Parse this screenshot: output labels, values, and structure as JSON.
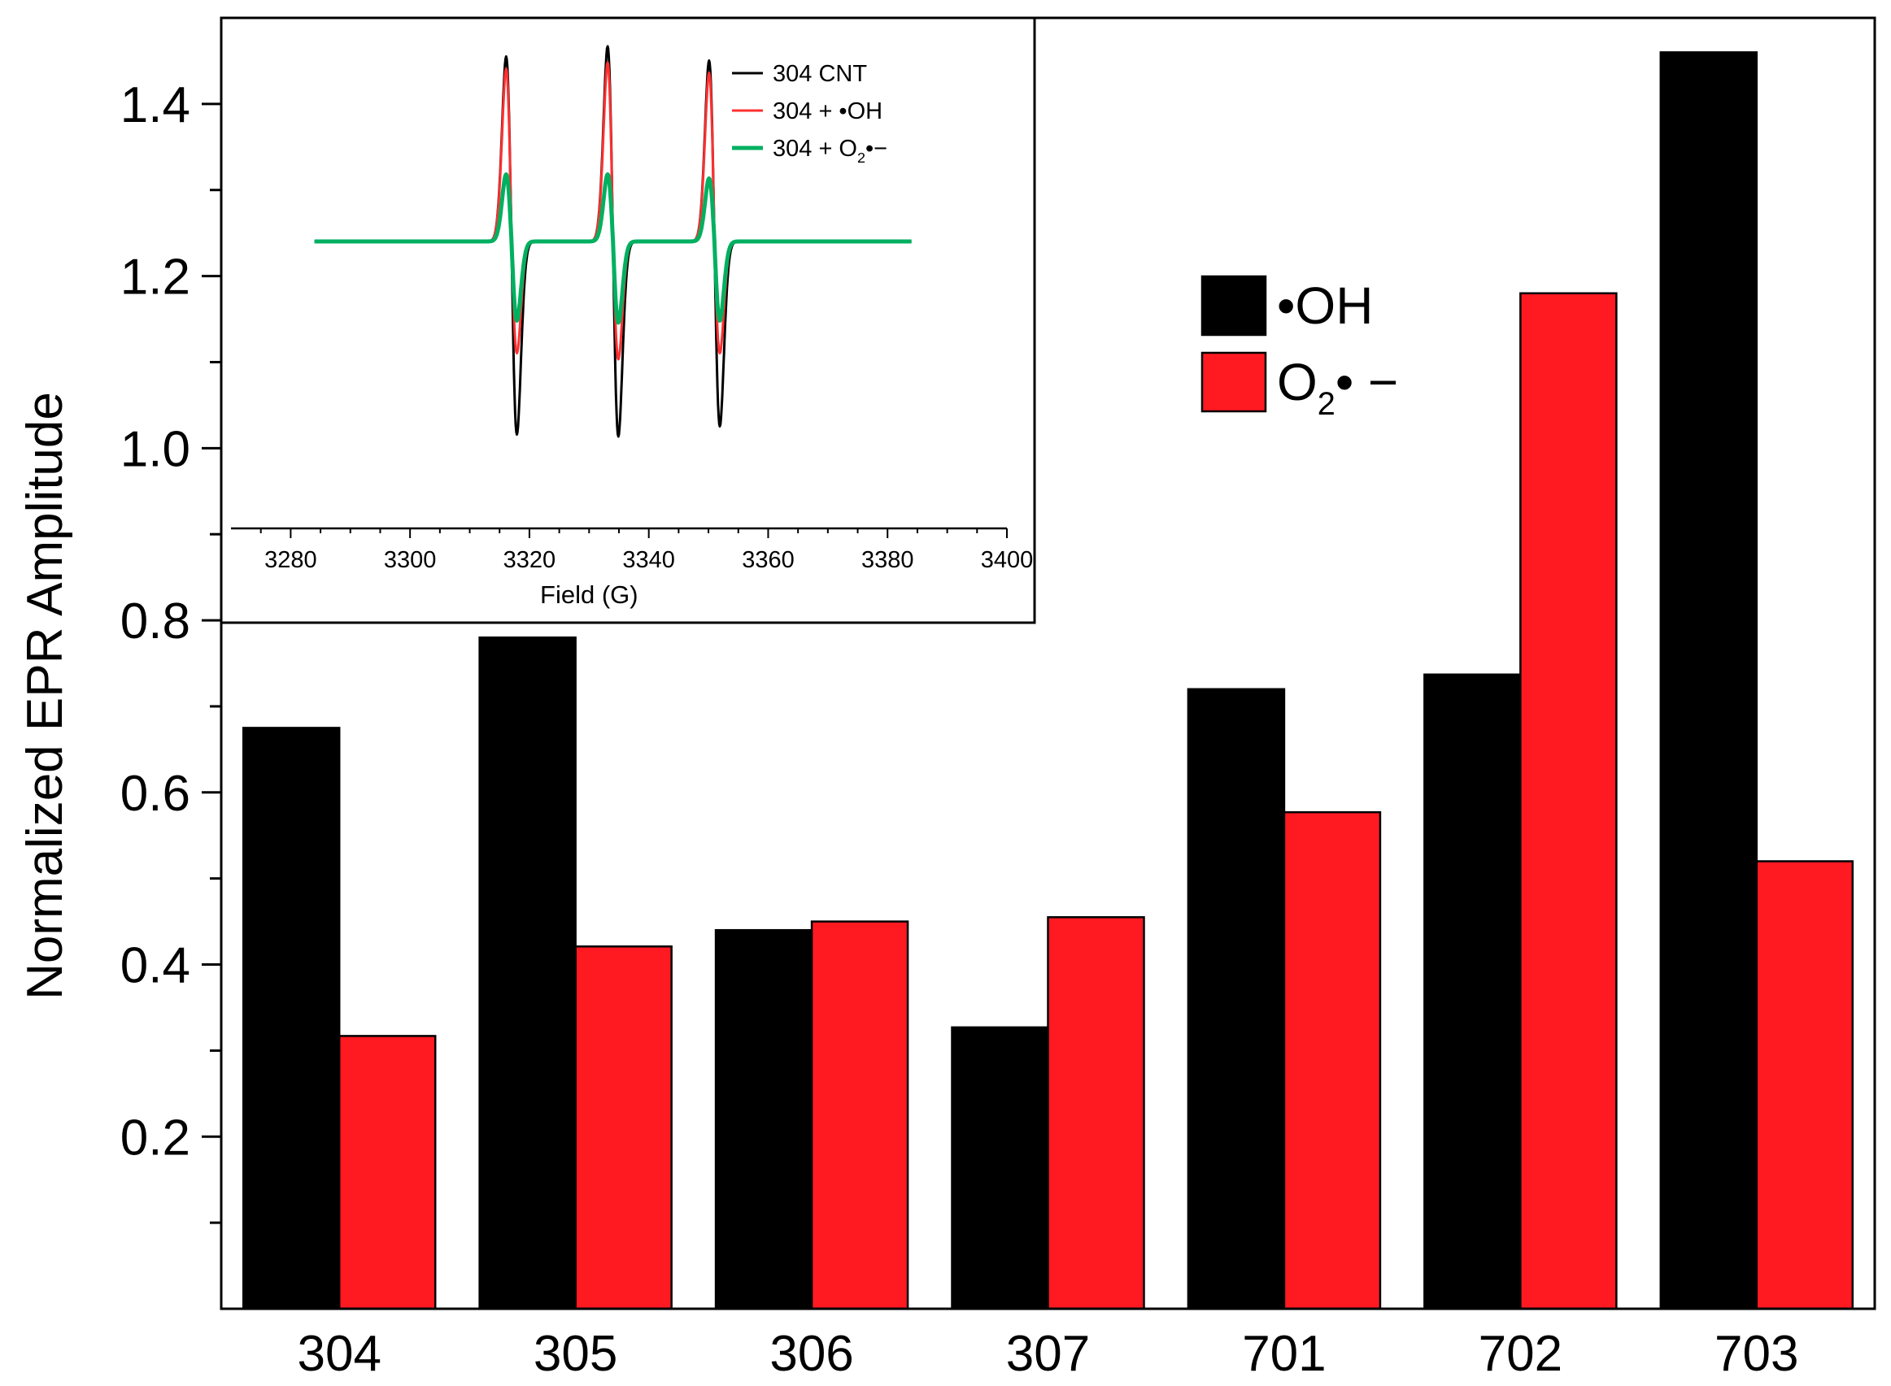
{
  "chart_data": [
    {
      "type": "bar",
      "title": "",
      "xlabel": "",
      "ylabel": "Normalized EPR Amplitude",
      "categories": [
        "304",
        "305",
        "306",
        "307",
        "701",
        "702",
        "703"
      ],
      "series": [
        {
          "name": "•OH",
          "color": "#000000",
          "values": [
            0.675,
            0.78,
            0.44,
            0.327,
            0.72,
            0.737,
            1.46
          ]
        },
        {
          "name": "O2•−",
          "name_main": "O",
          "name_sub": "2",
          "name_tail": "• −",
          "color": "#ff1a22",
          "values": [
            0.317,
            0.421,
            0.45,
            0.455,
            0.577,
            1.18,
            0.52
          ]
        }
      ],
      "ylim": [
        0.0,
        1.5
      ],
      "yticks": [
        0.2,
        0.4,
        0.6,
        0.8,
        1.0,
        1.2,
        1.4
      ],
      "ytick_labels": [
        "0.2",
        "0.4",
        "0.6",
        "0.8",
        "1.0",
        "1.2",
        "1.4"
      ],
      "legend_position": "upper-right"
    },
    {
      "type": "line",
      "title": "",
      "xlabel": "Field (G)",
      "ylabel": "",
      "xlim": [
        3270,
        3400
      ],
      "xticks": [
        3280,
        3300,
        3320,
        3340,
        3360,
        3380,
        3400
      ],
      "xtick_labels": [
        "3280",
        "3300",
        "3320",
        "3340",
        "3360",
        "3380",
        "3400"
      ],
      "ylim": [
        -1.0,
        1.0
      ],
      "baseline": 0.0,
      "field_range": [
        3284,
        3384
      ],
      "peak_centers": [
        3317,
        3334,
        3351
      ],
      "series": [
        {
          "name": "304 CNT",
          "name_main": "304 CNT",
          "name_sub": "",
          "name_tail": "",
          "color": "#000000",
          "amplitudes_pos": [
            0.91,
            0.96,
            0.89
          ],
          "amplitudes_neg": [
            -0.95,
            -0.96,
            -0.91
          ]
        },
        {
          "name": "304 + •OH",
          "name_main": "304 + •OH",
          "name_sub": "",
          "name_tail": "",
          "color": "#ff3030",
          "amplitudes_pos": [
            0.85,
            0.88,
            0.83
          ],
          "amplitudes_neg": [
            -0.55,
            -0.58,
            -0.55
          ]
        },
        {
          "name": "304 + O2•−",
          "name_main": "304 + O",
          "name_sub": "2",
          "name_tail": "•−",
          "color": "#00b060",
          "amplitudes_pos": [
            0.33,
            0.33,
            0.31
          ],
          "amplitudes_neg": [
            -0.39,
            -0.4,
            -0.39
          ]
        }
      ],
      "legend_position": "upper-right"
    }
  ]
}
